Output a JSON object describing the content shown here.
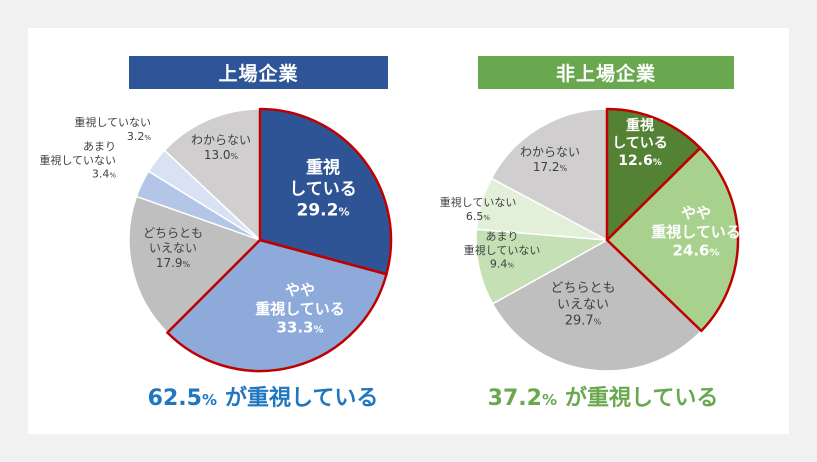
{
  "colors": {
    "background": "#f1f1f1",
    "panel": "#ffffff",
    "listed_header": "#2e5597",
    "unlisted_header": "#6aa84f",
    "listed_summary": "#1f77c0",
    "unlisted_summary": "#6aa84f",
    "highlight_border": "#c00000"
  },
  "summaries": {
    "listed": {
      "number": "62.5",
      "unit": "%",
      "text": "が重視している"
    },
    "unlisted": {
      "number": "37.2",
      "unit": "%",
      "text": "が重視している"
    }
  },
  "chart_data": [
    {
      "type": "pie",
      "title": "上場企業",
      "header_color": "#2e5597",
      "start_angle_deg": 0,
      "direction": "clockwise",
      "slices": [
        {
          "lines": [
            "重視",
            "している"
          ],
          "value": 29.2,
          "color": "#2f5496",
          "text_color": "#ffffff",
          "highlight": true
        },
        {
          "lines": [
            "やや",
            "重視している"
          ],
          "value": 33.3,
          "color": "#8eaadb",
          "text_color": "#ffffff",
          "highlight": true
        },
        {
          "lines": [
            "どちらとも",
            "いえない"
          ],
          "value": 17.9,
          "color": "#bfbfbf",
          "text_color": "#404040",
          "highlight": false
        },
        {
          "lines": [
            "あまり",
            "重視していない"
          ],
          "value": 3.4,
          "color": "#b4c6e7",
          "text_color": "#404040",
          "highlight": false
        },
        {
          "lines": [
            "重視していない"
          ],
          "value": 3.2,
          "color": "#d9e2f3",
          "text_color": "#404040",
          "highlight": false
        },
        {
          "lines": [
            "わからない"
          ],
          "value": 13.0,
          "color": "#d0cece",
          "text_color": "#404040",
          "highlight": false
        }
      ]
    },
    {
      "type": "pie",
      "title": "非上場企業",
      "header_color": "#6aa84f",
      "start_angle_deg": 0,
      "direction": "clockwise",
      "slices": [
        {
          "lines": [
            "重視",
            "している"
          ],
          "value": 12.6,
          "color": "#548235",
          "text_color": "#ffffff",
          "highlight": true
        },
        {
          "lines": [
            "やや",
            "重視している"
          ],
          "value": 24.6,
          "color": "#a9d18e",
          "text_color": "#ffffff",
          "highlight": true
        },
        {
          "lines": [
            "どちらとも",
            "いえない"
          ],
          "value": 29.7,
          "color": "#bfbfbf",
          "text_color": "#404040",
          "highlight": false
        },
        {
          "lines": [
            "あまり",
            "重視していない"
          ],
          "value": 9.4,
          "color": "#c5e0b4",
          "text_color": "#404040",
          "highlight": false
        },
        {
          "lines": [
            "重視していない"
          ],
          "value": 6.5,
          "color": "#e2f0d9",
          "text_color": "#404040",
          "highlight": false
        },
        {
          "lines": [
            "わからない"
          ],
          "value": 17.2,
          "color": "#d0cece",
          "text_color": "#404040",
          "highlight": false
        }
      ]
    }
  ]
}
